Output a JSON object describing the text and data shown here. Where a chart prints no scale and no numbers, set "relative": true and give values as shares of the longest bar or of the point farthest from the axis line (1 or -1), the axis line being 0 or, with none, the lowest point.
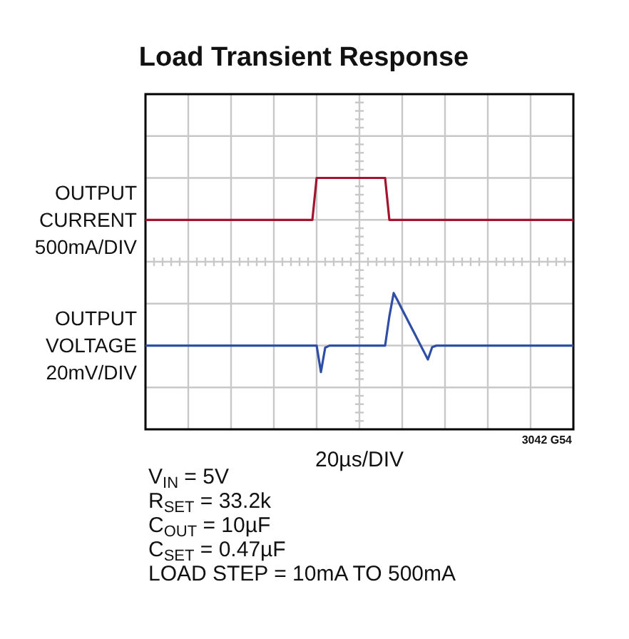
{
  "chart_data": {
    "type": "line",
    "title": "Load Transient Response",
    "xlabel": "20µs/DIV",
    "relative": true,
    "grid": true,
    "legend": false,
    "marker": "none",
    "line_style": "solid",
    "annotations": [
      "3042 G54",
      "V$_{IN}$ = 5V",
      "R$_{SET}$ = 33.2k",
      "C$_{OUT}$ = 10µF",
      "C$_{SET}$ = 0.47µF",
      "LOAD STEP = 10mA TO 500mA"
    ],
    "categories": [
      null,
      null,
      null,
      null,
      null,
      null,
      null,
      null,
      null,
      null,
      null,
      null,
      null,
      null,
      null,
      null,
      null,
      null,
      null,
      null,
      null,
      null,
      null,
      null,
      null,
      null,
      null,
      null,
      null,
      null,
      null,
      null,
      null,
      null,
      null,
      null,
      null,
      null,
      null,
      null,
      null,
      null,
      null,
      null,
      null,
      null,
      null,
      null,
      null,
      null,
      null,
      null,
      null,
      null,
      null,
      null,
      null,
      null,
      null,
      null,
      null,
      null,
      null,
      null,
      null,
      null,
      null,
      null,
      null,
      null,
      null,
      null,
      null,
      null,
      null,
      null,
      null,
      null,
      null,
      null,
      null,
      null,
      null,
      null,
      null,
      null,
      null,
      null,
      null,
      null,
      null,
      null,
      null,
      null,
      null,
      null,
      null,
      null,
      null,
      null,
      null
    ],
    "series": [
      {
        "name": "OUTPUT CURRENT 500mA/DIV",
        "color": "#a3142e",
        "values": [
          0.833,
          0.833,
          0.833,
          0.833,
          0.833,
          0.833,
          0.833,
          0.833,
          0.833,
          0.833,
          0.833,
          0.833,
          0.833,
          0.833,
          0.833,
          0.833,
          0.833,
          0.833,
          0.833,
          0.833,
          0.833,
          0.833,
          0.833,
          0.833,
          0.833,
          0.833,
          0.833,
          0.833,
          0.833,
          0.833,
          0.833,
          0.833,
          0.833,
          0.833,
          0.833,
          0.833,
          0.833,
          0.833,
          0.833,
          0.833,
          1,
          1,
          1,
          1,
          1,
          1,
          1,
          1,
          1,
          1,
          1,
          1,
          1,
          1,
          1,
          1,
          1,
          0.833,
          0.833,
          0.833,
          0.833,
          0.833,
          0.833,
          0.833,
          0.833,
          0.833,
          0.833,
          0.833,
          0.833,
          0.833,
          0.833,
          0.833,
          0.833,
          0.833,
          0.833,
          0.833,
          0.833,
          0.833,
          0.833,
          0.833,
          0.833,
          0.833,
          0.833,
          0.833,
          0.833,
          0.833,
          0.833,
          0.833,
          0.833,
          0.833,
          0.833,
          0.833,
          0.833,
          0.833,
          0.833,
          0.833,
          0.833,
          0.833,
          0.833,
          0.833,
          0.833
        ]
      },
      {
        "name": "OUTPUT VOLTAGE 20mV/DIV",
        "color": "#2f4fa6",
        "values": [
          0.333,
          0.333,
          0.333,
          0.333,
          0.333,
          0.333,
          0.333,
          0.333,
          0.333,
          0.333,
          0.333,
          0.333,
          0.333,
          0.333,
          0.333,
          0.333,
          0.333,
          0.333,
          0.333,
          0.333,
          0.333,
          0.333,
          0.333,
          0.333,
          0.333,
          0.333,
          0.333,
          0.333,
          0.333,
          0.333,
          0.333,
          0.333,
          0.333,
          0.333,
          0.333,
          0.333,
          0.333,
          0.333,
          0.333,
          0.333,
          0.333,
          0.228,
          0.325,
          0.333,
          0.333,
          0.333,
          0.333,
          0.333,
          0.333,
          0.333,
          0.333,
          0.333,
          0.333,
          0.333,
          0.333,
          0.333,
          0.333,
          0.45,
          0.542,
          0.51,
          0.476,
          0.443,
          0.41,
          0.377,
          0.344,
          0.311,
          0.278,
          0.327,
          0.333,
          0.333,
          0.333,
          0.333,
          0.333,
          0.333,
          0.333,
          0.333,
          0.333,
          0.333,
          0.333,
          0.333,
          0.333,
          0.333,
          0.333,
          0.333,
          0.333,
          0.333,
          0.333,
          0.333,
          0.333,
          0.333,
          0.333,
          0.333,
          0.333,
          0.333,
          0.333,
          0.333,
          0.333,
          0.333,
          0.333,
          0.333,
          0.333
        ]
      }
    ]
  }
}
